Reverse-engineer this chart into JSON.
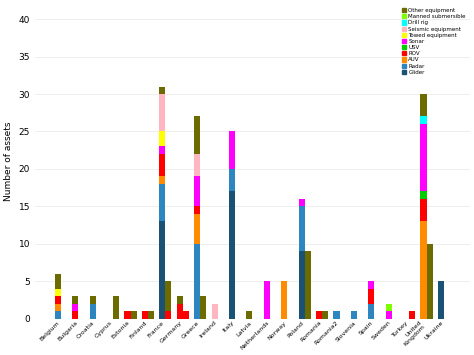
{
  "x_labels": [
    "Belgium",
    "Bulgaria",
    "Croatia",
    "Cyprus",
    "Estonia",
    "Finland",
    "France",
    "Germany",
    "Greece",
    "Ireland",
    "Italy",
    "Latvia",
    "Netherlands",
    "Norway",
    "Poland",
    "Romania",
    "Romania2",
    "Slovenia",
    "Spain",
    "Sweden",
    "Turkey",
    "United\nKingdom",
    "Ukraine"
  ],
  "legend_labels": [
    "Other equipment",
    "Manned submersible",
    "Drill rig",
    "Seismic equipment",
    "Towed equipment",
    "Sonar",
    "USV",
    "ROV",
    "AUV",
    "Radar",
    "Glider"
  ],
  "color_map": {
    "Glider": "#1A5276",
    "Radar": "#2E86C1",
    "AUV": "#FF8C00",
    "ROV": "#FF0000",
    "USV": "#00CC00",
    "Sonar": "#FF00FF",
    "Towed equipment": "#FFFF00",
    "Seismic equipment": "#FFB6C1",
    "Drill rig": "#00FFFF",
    "Manned submersible": "#7FFF00",
    "Other equipment": "#6B6B00"
  },
  "stack_order": [
    "Glider",
    "Radar",
    "AUV",
    "ROV",
    "USV",
    "Sonar",
    "Towed equipment",
    "Seismic equipment",
    "Drill rig",
    "Manned submersible",
    "Other equipment"
  ],
  "group1": {
    "Glider": [
      0,
      0,
      0,
      0,
      0,
      0,
      13,
      0,
      0,
      0,
      17,
      0,
      0,
      0,
      9,
      0,
      0,
      0,
      0,
      0,
      0,
      0,
      5
    ],
    "Radar": [
      1,
      0,
      2,
      0,
      0,
      0,
      5,
      0,
      10,
      0,
      3,
      0,
      0,
      0,
      6,
      0,
      1,
      1,
      2,
      0,
      0,
      0,
      0
    ],
    "AUV": [
      1,
      0,
      0,
      0,
      0,
      0,
      1,
      0,
      4,
      0,
      0,
      0,
      0,
      5,
      0,
      0,
      0,
      0,
      0,
      0,
      0,
      13,
      0
    ],
    "ROV": [
      1,
      1,
      0,
      0,
      1,
      1,
      3,
      2,
      1,
      0,
      0,
      0,
      0,
      0,
      0,
      1,
      0,
      0,
      2,
      0,
      0,
      3,
      0
    ],
    "USV": [
      0,
      0,
      0,
      0,
      0,
      0,
      0,
      0,
      0,
      0,
      0,
      0,
      0,
      0,
      0,
      0,
      0,
      0,
      0,
      0,
      0,
      1,
      0
    ],
    "Sonar": [
      0,
      1,
      0,
      0,
      0,
      0,
      1,
      0,
      4,
      0,
      5,
      0,
      5,
      0,
      1,
      0,
      0,
      0,
      1,
      1,
      0,
      9,
      0
    ],
    "Towed equipment": [
      1,
      0,
      0,
      0,
      0,
      0,
      2,
      0,
      0,
      0,
      0,
      0,
      0,
      0,
      0,
      0,
      0,
      0,
      0,
      0,
      0,
      0,
      0
    ],
    "Seismic equipment": [
      0,
      0,
      0,
      0,
      0,
      0,
      5,
      0,
      3,
      2,
      0,
      0,
      0,
      0,
      0,
      0,
      0,
      0,
      0,
      0,
      0,
      0,
      0
    ],
    "Drill rig": [
      0,
      0,
      0,
      0,
      0,
      0,
      0,
      0,
      0,
      0,
      0,
      0,
      0,
      0,
      0,
      0,
      0,
      0,
      0,
      0,
      0,
      1,
      0
    ],
    "Manned submersible": [
      0,
      0,
      0,
      0,
      0,
      0,
      0,
      0,
      0,
      0,
      0,
      0,
      0,
      0,
      0,
      0,
      0,
      0,
      0,
      1,
      0,
      0,
      0
    ],
    "Other equipment": [
      2,
      1,
      1,
      0,
      0,
      0,
      1,
      1,
      5,
      0,
      0,
      1,
      0,
      0,
      0,
      0,
      0,
      0,
      0,
      0,
      0,
      3,
      0
    ]
  },
  "group2": {
    "Glider": [
      0,
      0,
      0,
      0,
      0,
      0,
      0,
      0,
      0,
      0,
      0,
      0,
      0,
      0,
      0,
      0,
      0,
      0,
      0,
      0,
      0,
      0,
      0
    ],
    "Radar": [
      0,
      0,
      0,
      0,
      0,
      0,
      0,
      0,
      0,
      0,
      0,
      0,
      0,
      0,
      0,
      0,
      0,
      0,
      0,
      0,
      0,
      0,
      0
    ],
    "AUV": [
      0,
      0,
      0,
      0,
      0,
      0,
      0,
      0,
      0,
      0,
      0,
      0,
      0,
      0,
      0,
      0,
      0,
      0,
      0,
      0,
      0,
      0,
      0
    ],
    "ROV": [
      0,
      0,
      0,
      0,
      0,
      0,
      1,
      1,
      0,
      0,
      0,
      0,
      0,
      0,
      0,
      0,
      0,
      0,
      0,
      0,
      1,
      0,
      0
    ],
    "USV": [
      0,
      0,
      0,
      0,
      0,
      0,
      0,
      0,
      0,
      0,
      0,
      0,
      0,
      0,
      0,
      0,
      0,
      0,
      0,
      0,
      0,
      0,
      0
    ],
    "Sonar": [
      0,
      0,
      0,
      0,
      0,
      0,
      0,
      0,
      0,
      0,
      0,
      0,
      0,
      0,
      0,
      0,
      0,
      0,
      0,
      0,
      0,
      0,
      0
    ],
    "Towed equipment": [
      0,
      0,
      0,
      0,
      0,
      0,
      0,
      0,
      0,
      0,
      0,
      0,
      0,
      0,
      0,
      0,
      0,
      0,
      0,
      0,
      0,
      0,
      0
    ],
    "Seismic equipment": [
      0,
      0,
      0,
      0,
      0,
      0,
      0,
      0,
      0,
      0,
      0,
      0,
      0,
      0,
      0,
      0,
      0,
      0,
      0,
      0,
      0,
      0,
      0
    ],
    "Drill rig": [
      0,
      0,
      0,
      0,
      0,
      0,
      0,
      0,
      0,
      0,
      0,
      0,
      0,
      0,
      0,
      0,
      0,
      0,
      0,
      0,
      0,
      0,
      0
    ],
    "Manned submersible": [
      0,
      0,
      0,
      0,
      0,
      0,
      0,
      0,
      0,
      0,
      0,
      0,
      0,
      0,
      0,
      0,
      0,
      0,
      0,
      0,
      0,
      0,
      0
    ],
    "Other equipment": [
      0,
      0,
      0,
      3,
      1,
      1,
      4,
      0,
      3,
      0,
      0,
      0,
      0,
      0,
      9,
      1,
      0,
      0,
      0,
      0,
      0,
      10,
      0
    ]
  },
  "ylabel": "Number of assets",
  "ylim": [
    0,
    42
  ],
  "yticks": [
    0,
    5,
    10,
    15,
    20,
    25,
    30,
    35,
    40
  ],
  "background_color": "#ffffff",
  "grid_color": "#e8e8e8"
}
